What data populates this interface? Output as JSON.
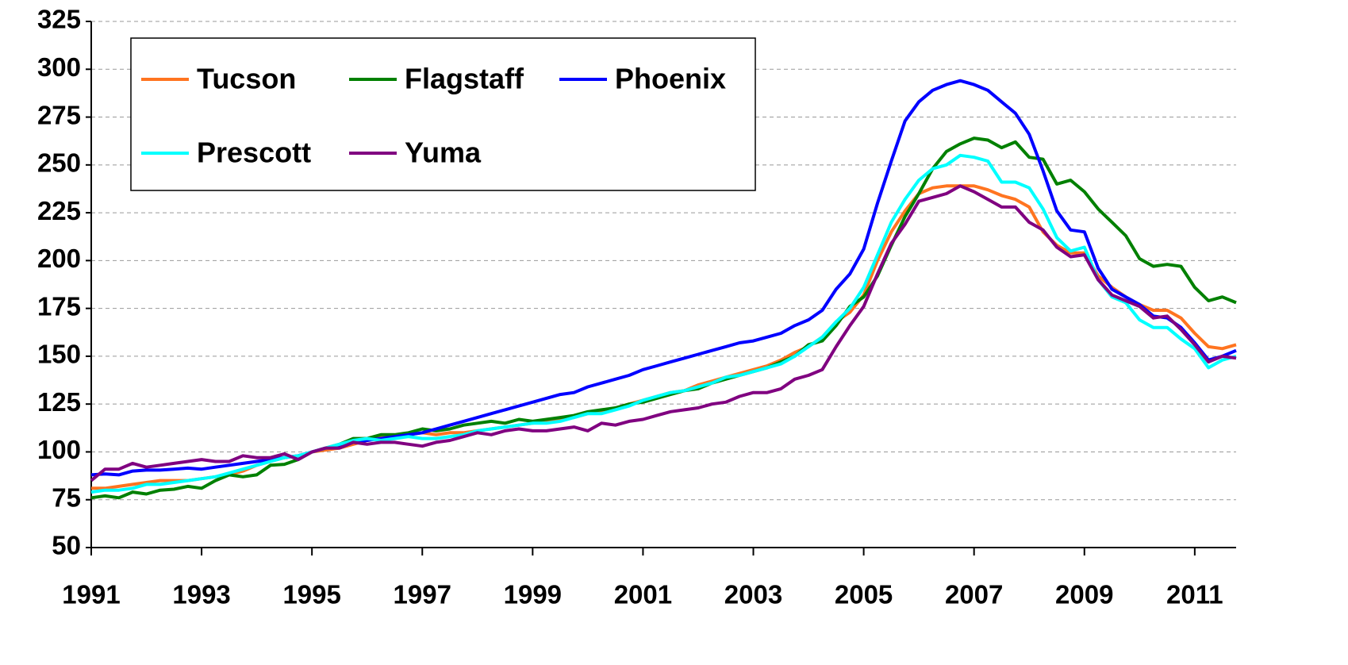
{
  "chart_data": {
    "type": "line",
    "x": [
      1991,
      1991.25,
      1991.5,
      1991.75,
      1992,
      1992.25,
      1992.5,
      1992.75,
      1993,
      1993.25,
      1993.5,
      1993.75,
      1994,
      1994.25,
      1994.5,
      1994.75,
      1995,
      1995.25,
      1995.5,
      1995.75,
      1996,
      1996.25,
      1996.5,
      1996.75,
      1997,
      1997.25,
      1997.5,
      1997.75,
      1998,
      1998.25,
      1998.5,
      1998.75,
      1999,
      1999.25,
      1999.5,
      1999.75,
      2000,
      2000.25,
      2000.5,
      2000.75,
      2001,
      2001.25,
      2001.5,
      2001.75,
      2002,
      2002.25,
      2002.5,
      2002.75,
      2003,
      2003.25,
      2003.5,
      2003.75,
      2004,
      2004.25,
      2004.5,
      2004.75,
      2005,
      2005.25,
      2005.5,
      2005.75,
      2006,
      2006.25,
      2006.5,
      2006.75,
      2007,
      2007.25,
      2007.5,
      2007.75,
      2008,
      2008.25,
      2008.5,
      2008.75,
      2009,
      2009.25,
      2009.5,
      2009.75,
      2010,
      2010.25,
      2010.5,
      2010.75,
      2011,
      2011.25,
      2011.5,
      2011.75
    ],
    "series": [
      {
        "name": "Tucson",
        "color": "#ff7420",
        "values": [
          81,
          81,
          82,
          83,
          84,
          85,
          85,
          85,
          86,
          87,
          88,
          90,
          93,
          95,
          97,
          98,
          100,
          101,
          102,
          104,
          106,
          108,
          108,
          109,
          110,
          109,
          110,
          110,
          111,
          112,
          113,
          114,
          115,
          116,
          117,
          118,
          120,
          121,
          123,
          125,
          127,
          129,
          131,
          132,
          135,
          137,
          139,
          141,
          143,
          145,
          148,
          152,
          155,
          160,
          168,
          173,
          182,
          200,
          215,
          226,
          235,
          238,
          239,
          239,
          239,
          237,
          234,
          232,
          228,
          215,
          208,
          204,
          204,
          192,
          186,
          181,
          177,
          174,
          174,
          170,
          162,
          155,
          154,
          156
        ]
      },
      {
        "name": "Flagstaff",
        "color": "#008000",
        "values": [
          76,
          77,
          76,
          79,
          78,
          80,
          80.5,
          82,
          81,
          85,
          88,
          87,
          88,
          93,
          93.5,
          96,
          100,
          102,
          104,
          107,
          107,
          109,
          109,
          110,
          112,
          111,
          112,
          114,
          115,
          116,
          115,
          117,
          116,
          117,
          118,
          119,
          121,
          122,
          123,
          125,
          126,
          128,
          130,
          132,
          133,
          136,
          138,
          140,
          142,
          144,
          147,
          150,
          156,
          158,
          166,
          176,
          181,
          192,
          208,
          223,
          235,
          248,
          257,
          261,
          264,
          263,
          259,
          262,
          254,
          253,
          240,
          242,
          236,
          227,
          220,
          213,
          201,
          197,
          198,
          197,
          186,
          179,
          181,
          178
        ]
      },
      {
        "name": "Phoenix",
        "color": "#0000ff",
        "values": [
          88,
          88.5,
          88,
          90,
          90.5,
          90.5,
          91,
          91.5,
          91,
          92,
          93,
          94,
          95,
          96,
          97,
          98,
          100,
          102,
          103,
          105,
          106,
          107,
          108,
          109,
          110,
          112,
          114,
          116,
          118,
          120,
          122,
          124,
          126,
          128,
          130,
          131,
          134,
          136,
          138,
          140,
          143,
          145,
          147,
          149,
          151,
          153,
          155,
          157,
          158,
          160,
          162,
          166,
          169,
          174,
          185,
          193,
          206,
          230,
          252,
          273,
          283,
          289,
          292,
          294,
          292,
          289,
          283,
          277,
          266,
          247,
          226,
          216,
          215,
          196,
          185,
          181,
          177,
          171,
          170,
          165,
          157,
          148,
          150,
          153
        ]
      },
      {
        "name": "Prescott",
        "color": "#00ffff",
        "values": [
          79,
          80,
          80,
          81,
          83,
          83,
          84,
          85,
          86,
          87,
          89,
          91,
          93,
          95,
          97,
          98,
          100,
          102,
          104,
          106,
          107,
          106,
          107,
          108,
          107,
          107,
          108,
          109,
          111,
          112,
          113,
          114,
          115,
          115,
          116,
          118,
          120,
          120,
          122,
          124,
          127,
          129,
          131,
          132,
          134,
          136,
          139,
          140,
          142,
          144,
          146,
          150,
          155,
          160,
          168,
          175,
          186,
          203,
          220,
          232,
          242,
          248,
          250,
          255,
          254,
          252,
          241,
          241,
          238,
          227,
          212,
          205,
          207,
          190,
          181,
          178,
          169,
          165,
          165,
          159,
          154,
          144,
          148,
          150
        ]
      },
      {
        "name": "Yuma",
        "color": "#800080",
        "values": [
          85,
          91,
          91,
          94,
          92,
          93,
          94,
          95,
          96,
          95,
          95,
          98,
          97,
          97,
          99,
          96,
          100,
          102,
          102,
          105,
          104,
          105,
          105,
          104,
          103,
          105,
          106,
          108,
          110,
          109,
          111,
          112,
          111,
          111,
          112,
          113,
          111,
          115,
          114,
          116,
          117,
          119,
          121,
          122,
          123,
          125,
          126,
          129,
          131,
          131,
          133,
          138,
          140,
          143,
          155,
          166,
          176,
          193,
          209,
          219,
          231,
          233,
          235,
          239,
          236,
          232,
          228,
          228,
          220,
          216,
          207,
          202,
          203,
          190,
          182,
          179,
          176,
          170,
          171,
          164,
          156,
          147,
          150,
          149
        ]
      }
    ],
    "xlim": [
      1991,
      2011.75
    ],
    "xticks": [
      1991,
      1993,
      1995,
      1997,
      1999,
      2001,
      2003,
      2005,
      2007,
      2009,
      2011
    ],
    "ylim": [
      50,
      325
    ],
    "yticks": [
      50,
      75,
      100,
      125,
      150,
      175,
      200,
      225,
      250,
      275,
      300,
      325
    ],
    "grid": true,
    "legend": "upper left"
  }
}
